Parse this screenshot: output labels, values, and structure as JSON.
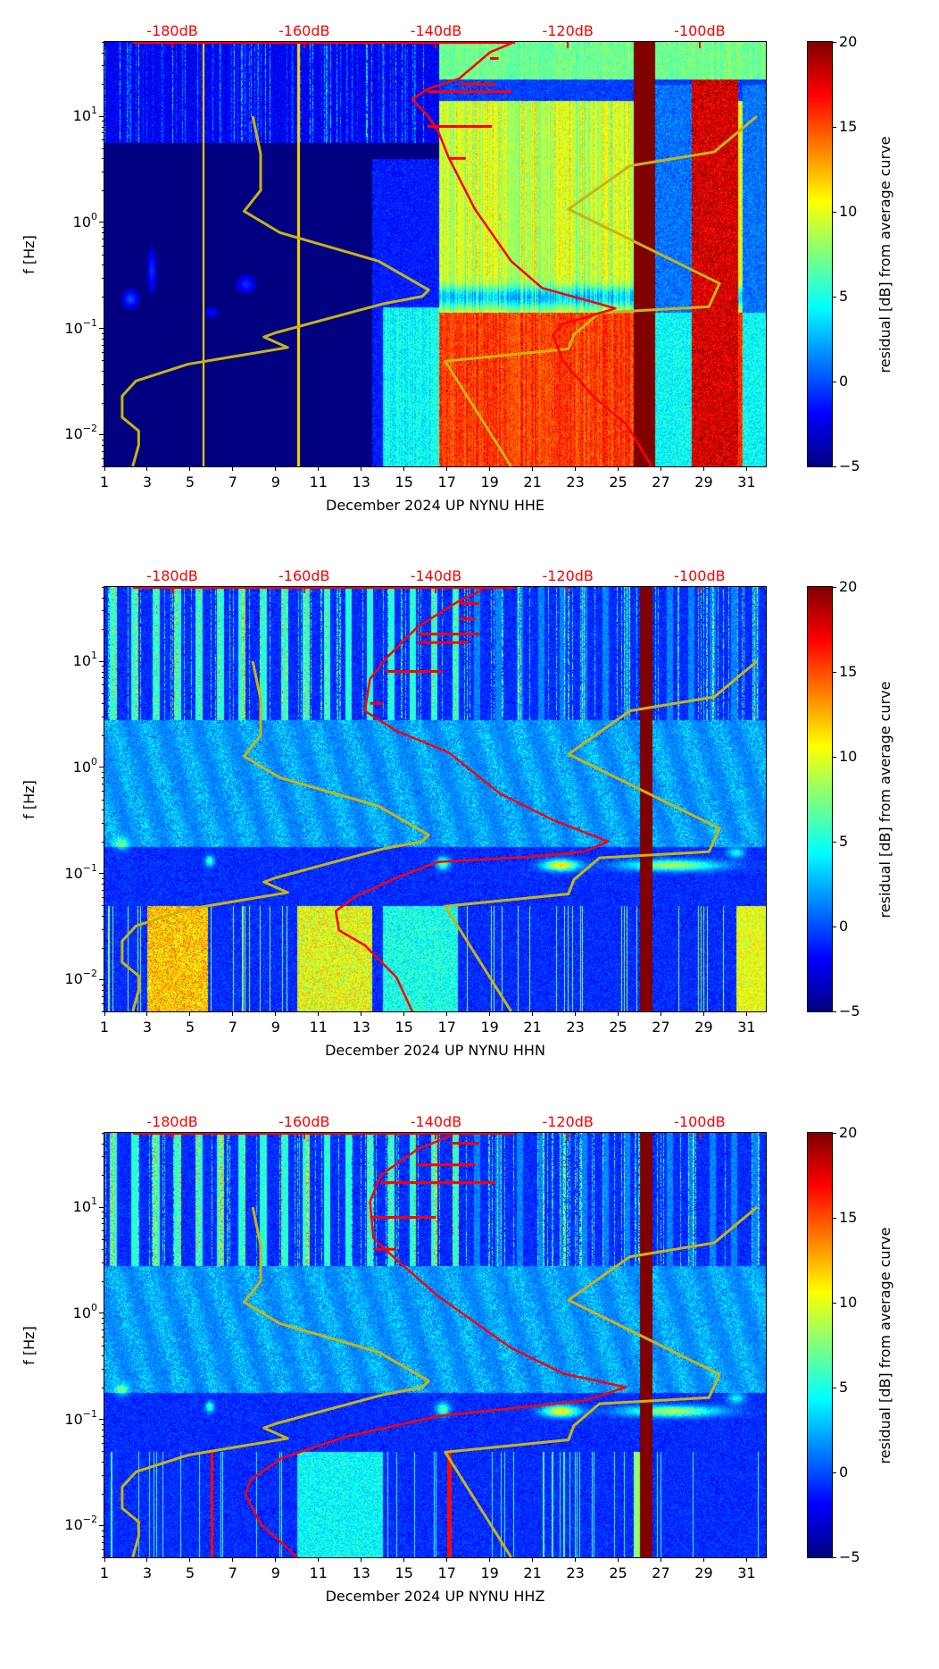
{
  "chart_data": [
    {
      "type": "heatmap",
      "title": "",
      "xlabel": "December 2024 UP NYNU  HHE",
      "ylabel": "f [Hz]",
      "x_ticks": [
        "1",
        "3",
        "5",
        "7",
        "9",
        "11",
        "13",
        "15",
        "17",
        "19",
        "21",
        "23",
        "25",
        "27",
        "29",
        "31"
      ],
      "xlim": [
        1,
        31.9
      ],
      "ylim": [
        0.005,
        50
      ],
      "y_scale": "log",
      "y_ticks": [
        {
          "base": "10",
          "exp": "1",
          "value": 10
        },
        {
          "base": "10",
          "exp": "0",
          "value": 1
        },
        {
          "base": "10",
          "exp": "−1",
          "value": 0.1
        },
        {
          "base": "10",
          "exp": "−2",
          "value": 0.01
        }
      ],
      "top_axis_labels": [
        "-180dB",
        "-160dB",
        "-140dB",
        "-120dB",
        "-100dB"
      ],
      "top_axis_db": [
        -180,
        -160,
        -140,
        -120,
        -100
      ],
      "db_axis": {
        "day_at_minus180": 4.17,
        "days_per_20dB": 6.16
      },
      "colorbar": {
        "label": "residual [dB] from average curve",
        "ticks": [
          "20",
          "15",
          "10",
          "5",
          "0",
          "−5"
        ],
        "values": [
          20,
          15,
          10,
          5,
          0,
          -5
        ],
        "range": [
          -5,
          20
        ],
        "colormap": "jet"
      },
      "average_curve": {
        "color": "#ff0000",
        "points_db_freq": [
          [
            -128.1,
            50
          ],
          [
            -131.8,
            40
          ],
          [
            -136.5,
            22.6
          ],
          [
            -141.3,
            18
          ],
          [
            -143.6,
            14.4
          ],
          [
            -141.3,
            10.2
          ],
          [
            -139.7,
            7.3
          ],
          [
            -138.1,
            4.1
          ],
          [
            -134.1,
            1.33
          ],
          [
            -128.6,
            0.43
          ],
          [
            -123.9,
            0.24
          ],
          [
            -115.2,
            0.17
          ],
          [
            -112.8,
            0.154
          ],
          [
            -120.7,
            0.11
          ],
          [
            -122.3,
            0.087
          ],
          [
            -120.7,
            0.049
          ],
          [
            -115.9,
            0.022
          ],
          [
            -111.2,
            0.0126
          ],
          [
            -108.8,
            0.0072
          ],
          [
            -107.3,
            0.005
          ]
        ],
        "spikes_freq_db": [
          [
            35,
            -130.5
          ],
          [
            20,
            -131
          ],
          [
            17,
            -128.5
          ],
          [
            8,
            -131.5
          ],
          [
            4,
            -135.5
          ]
        ]
      },
      "noise_models": {
        "color": "#c8b414",
        "low": [
          [
            -167.8,
            10
          ],
          [
            -166.6,
            4.4
          ],
          [
            -166.6,
            2.0
          ],
          [
            -169.1,
            1.27
          ],
          [
            -163.7,
            0.8
          ],
          [
            -148.7,
            0.43
          ],
          [
            -141.1,
            0.23
          ],
          [
            -142.1,
            0.2
          ],
          [
            -148.1,
            0.17
          ],
          [
            -164.3,
            0.091
          ],
          [
            -166.1,
            0.083
          ],
          [
            -162.5,
            0.066
          ],
          [
            -177.6,
            0.046
          ],
          [
            -185.5,
            0.032
          ],
          [
            -187.6,
            0.023
          ],
          [
            -187.6,
            0.0145
          ],
          [
            -185.1,
            0.0108
          ],
          [
            -185.1,
            0.0079
          ],
          [
            -186,
            0.005
          ]
        ],
        "high": [
          [
            -91.3,
            10
          ],
          [
            -97.8,
            4.6
          ],
          [
            -110.6,
            3.4
          ],
          [
            -119.9,
            1.33
          ],
          [
            -97,
            0.265
          ],
          [
            -98.6,
            0.16
          ],
          [
            -115.2,
            0.14
          ],
          [
            -119.1,
            0.087
          ],
          [
            -119.9,
            0.064
          ],
          [
            -138.6,
            0.049
          ],
          [
            -128.6,
            0.005
          ]
        ]
      }
    },
    {
      "type": "heatmap",
      "title": "",
      "xlabel": "December 2024 UP NYNU  HHN",
      "ylabel": "f [Hz]",
      "x_ticks": [
        "1",
        "3",
        "5",
        "7",
        "9",
        "11",
        "13",
        "15",
        "17",
        "19",
        "21",
        "23",
        "25",
        "27",
        "29",
        "31"
      ],
      "xlim": [
        1,
        31.9
      ],
      "ylim": [
        0.005,
        50
      ],
      "y_scale": "log",
      "y_ticks": [
        {
          "base": "10",
          "exp": "1",
          "value": 10
        },
        {
          "base": "10",
          "exp": "0",
          "value": 1
        },
        {
          "base": "10",
          "exp": "−1",
          "value": 0.1
        },
        {
          "base": "10",
          "exp": "−2",
          "value": 0.01
        }
      ],
      "top_axis_labels": [
        "-180dB",
        "-160dB",
        "-140dB",
        "-120dB",
        "-100dB"
      ],
      "top_axis_db": [
        -180,
        -160,
        -140,
        -120,
        -100
      ],
      "db_axis": {
        "day_at_minus180": 4.17,
        "days_per_20dB": 6.16
      },
      "colorbar": {
        "label": "residual [dB] from average curve",
        "ticks": [
          "20",
          "15",
          "10",
          "5",
          "0",
          "−5"
        ],
        "values": [
          20,
          15,
          10,
          5,
          0,
          -5
        ],
        "range": [
          -5,
          20
        ],
        "colormap": "jet"
      },
      "average_curve": {
        "color": "#ff0000",
        "points_db_freq": [
          [
            -133,
            46.7
          ],
          [
            -136.5,
            37
          ],
          [
            -142.8,
            21
          ],
          [
            -147.6,
            10.6
          ],
          [
            -150,
            6.8
          ],
          [
            -150.8,
            3.4
          ],
          [
            -146,
            2.2
          ],
          [
            -138.1,
            1.38
          ],
          [
            -130.2,
            0.56
          ],
          [
            -122.3,
            0.32
          ],
          [
            -113.9,
            0.2
          ],
          [
            -117.5,
            0.16
          ],
          [
            -125.4,
            0.144
          ],
          [
            -139.7,
            0.128
          ],
          [
            -146,
            0.091
          ],
          [
            -152.3,
            0.06
          ],
          [
            -155.2,
            0.044
          ],
          [
            -154.7,
            0.029
          ],
          [
            -150.8,
            0.021
          ],
          [
            -146,
            0.0105
          ],
          [
            -143.6,
            0.005
          ]
        ],
        "spikes_freq_db": [
          [
            35,
            -133.4
          ],
          [
            25,
            -134
          ],
          [
            18,
            -133.4
          ],
          [
            15,
            -135
          ],
          [
            8,
            -139
          ],
          [
            4,
            -148
          ]
        ]
      },
      "noise_models": {
        "color": "#c8b414",
        "low": [
          [
            -167.8,
            10
          ],
          [
            -166.6,
            4.4
          ],
          [
            -166.6,
            2.0
          ],
          [
            -169.1,
            1.27
          ],
          [
            -163.7,
            0.8
          ],
          [
            -148.7,
            0.43
          ],
          [
            -141.1,
            0.23
          ],
          [
            -142.1,
            0.2
          ],
          [
            -148.1,
            0.17
          ],
          [
            -164.3,
            0.091
          ],
          [
            -166.1,
            0.083
          ],
          [
            -162.5,
            0.066
          ],
          [
            -177.6,
            0.046
          ],
          [
            -185.5,
            0.032
          ],
          [
            -187.6,
            0.023
          ],
          [
            -187.6,
            0.0145
          ],
          [
            -185.1,
            0.0108
          ],
          [
            -185.1,
            0.0079
          ],
          [
            -186,
            0.005
          ]
        ],
        "high": [
          [
            -91.3,
            10
          ],
          [
            -97.8,
            4.6
          ],
          [
            -110.6,
            3.4
          ],
          [
            -119.9,
            1.33
          ],
          [
            -97,
            0.265
          ],
          [
            -98.6,
            0.16
          ],
          [
            -115.2,
            0.14
          ],
          [
            -119.1,
            0.087
          ],
          [
            -119.9,
            0.064
          ],
          [
            -138.6,
            0.049
          ],
          [
            -128.6,
            0.005
          ]
        ]
      }
    },
    {
      "type": "heatmap",
      "title": "",
      "xlabel": "December 2024 UP NYNU  HHZ",
      "ylabel": "f [Hz]",
      "x_ticks": [
        "1",
        "3",
        "5",
        "7",
        "9",
        "11",
        "13",
        "15",
        "17",
        "19",
        "21",
        "23",
        "25",
        "27",
        "29",
        "31"
      ],
      "xlim": [
        1,
        31.9
      ],
      "ylim": [
        0.005,
        50
      ],
      "y_scale": "log",
      "y_ticks": [
        {
          "base": "10",
          "exp": "1",
          "value": 10
        },
        {
          "base": "10",
          "exp": "0",
          "value": 1
        },
        {
          "base": "10",
          "exp": "−1",
          "value": 0.1
        },
        {
          "base": "10",
          "exp": "−2",
          "value": 0.01
        }
      ],
      "top_axis_labels": [
        "-180dB",
        "-160dB",
        "-140dB",
        "-120dB",
        "-100dB"
      ],
      "top_axis_db": [
        -180,
        -160,
        -140,
        -120,
        -100
      ],
      "db_axis": {
        "day_at_minus180": 4.17,
        "days_per_20dB": 6.16
      },
      "colorbar": {
        "label": "residual [dB] from average curve",
        "ticks": [
          "20",
          "15",
          "10",
          "5",
          "0",
          "−5"
        ],
        "values": [
          20,
          15,
          10,
          5,
          0,
          -5
        ],
        "range": [
          -5,
          20
        ],
        "colormap": "jet"
      },
      "average_curve": {
        "color": "#ff0000",
        "points_db_freq": [
          [
            -137.8,
            47
          ],
          [
            -142.8,
            35
          ],
          [
            -148.4,
            20
          ],
          [
            -150,
            11.3
          ],
          [
            -149.5,
            5.1
          ],
          [
            -146,
            3.2
          ],
          [
            -139.7,
            1.45
          ],
          [
            -128.6,
            0.47
          ],
          [
            -120.7,
            0.27
          ],
          [
            -111.2,
            0.2
          ],
          [
            -117.5,
            0.15
          ],
          [
            -139.7,
            0.107
          ],
          [
            -153.9,
            0.068
          ],
          [
            -163.4,
            0.043
          ],
          [
            -168.1,
            0.027
          ],
          [
            -168.9,
            0.0195
          ],
          [
            -166.6,
            0.0103
          ],
          [
            -161,
            0.005
          ]
        ],
        "spikes_freq_db": [
          [
            40,
            -133.4
          ],
          [
            25,
            -134
          ],
          [
            17,
            -131
          ],
          [
            8,
            -140
          ],
          [
            4,
            -146
          ]
        ]
      },
      "noise_models": {
        "color": "#c8b414",
        "low": [
          [
            -167.8,
            10
          ],
          [
            -166.6,
            4.4
          ],
          [
            -166.6,
            2.0
          ],
          [
            -169.1,
            1.27
          ],
          [
            -163.7,
            0.8
          ],
          [
            -148.7,
            0.43
          ],
          [
            -141.1,
            0.23
          ],
          [
            -142.1,
            0.2
          ],
          [
            -148.1,
            0.17
          ],
          [
            -164.3,
            0.091
          ],
          [
            -166.1,
            0.083
          ],
          [
            -162.5,
            0.066
          ],
          [
            -177.6,
            0.046
          ],
          [
            -185.5,
            0.032
          ],
          [
            -187.6,
            0.023
          ],
          [
            -187.6,
            0.0145
          ],
          [
            -185.1,
            0.0108
          ],
          [
            -185.1,
            0.0079
          ],
          [
            -186,
            0.005
          ]
        ],
        "high": [
          [
            -91.3,
            10
          ],
          [
            -97.8,
            4.6
          ],
          [
            -110.6,
            3.4
          ],
          [
            -119.9,
            1.33
          ],
          [
            -97,
            0.265
          ],
          [
            -98.6,
            0.16
          ],
          [
            -115.2,
            0.14
          ],
          [
            -119.1,
            0.087
          ],
          [
            -119.9,
            0.064
          ],
          [
            -138.6,
            0.049
          ],
          [
            -128.6,
            0.005
          ]
        ]
      }
    }
  ]
}
